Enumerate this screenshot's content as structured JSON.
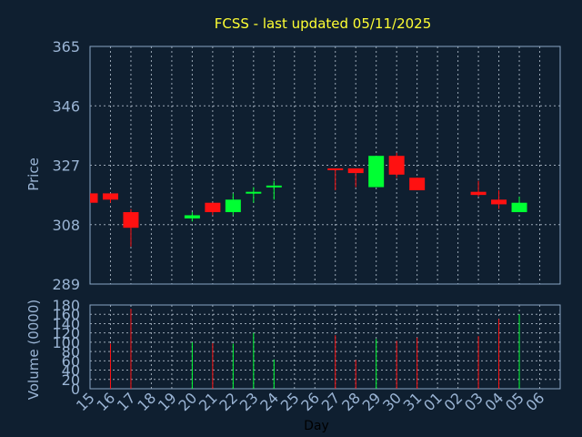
{
  "chart_data": {
    "type": "candlestick",
    "title": "FCSS - last updated 05/11/2025",
    "xlabel": "Day",
    "price_panel": {
      "ylabel": "Price",
      "ylim": [
        289,
        365
      ],
      "yticks": [
        "365",
        "346",
        "327",
        "308",
        "289"
      ],
      "grid": true
    },
    "volume_panel": {
      "ylabel": "Volume (0000)",
      "ylim": [
        0,
        180
      ],
      "yticks": [
        "180",
        "160",
        "140",
        "120",
        "100",
        "80",
        "60",
        "40",
        "20",
        "0"
      ],
      "grid": true
    },
    "categories": [
      "15",
      "16",
      "17",
      "18",
      "19",
      "20",
      "21",
      "22",
      "23",
      "24",
      "25",
      "26",
      "27",
      "28",
      "29",
      "30",
      "31",
      "01",
      "02",
      "03",
      "04",
      "05",
      "06"
    ],
    "ohlc": [
      {
        "day": "15",
        "open": 318,
        "high": 318,
        "low": 315,
        "close": 315
      },
      {
        "day": "16",
        "open": 318,
        "high": 318,
        "low": 315,
        "close": 316
      },
      {
        "day": "17",
        "open": 312,
        "high": 313,
        "low": 301,
        "close": 307
      },
      {
        "day": "20",
        "open": 310,
        "high": 312,
        "low": 309,
        "close": 311
      },
      {
        "day": "21",
        "open": 315,
        "high": 315,
        "low": 311,
        "close": 312
      },
      {
        "day": "22",
        "open": 312,
        "high": 318,
        "low": 311,
        "close": 316
      },
      {
        "day": "23",
        "open": 318,
        "high": 320,
        "low": 315,
        "close": 318.5
      },
      {
        "day": "24",
        "open": 320,
        "high": 322,
        "low": 316,
        "close": 320.5
      },
      {
        "day": "27",
        "open": 326,
        "high": 326,
        "low": 319,
        "close": 325.5
      },
      {
        "day": "28",
        "open": 326,
        "high": 326,
        "low": 320,
        "close": 324.5
      },
      {
        "day": "29",
        "open": 320,
        "high": 330,
        "low": 320,
        "close": 330
      },
      {
        "day": "30",
        "open": 330,
        "high": 331,
        "low": 323,
        "close": 324
      },
      {
        "day": "31",
        "open": 323,
        "high": 323,
        "low": 319,
        "close": 319
      },
      {
        "day": "03",
        "open": 318.5,
        "high": 322,
        "low": 317,
        "close": 317.5
      },
      {
        "day": "04",
        "open": 316,
        "high": 319,
        "low": 313,
        "close": 314.5
      },
      {
        "day": "05",
        "open": 312,
        "high": 317,
        "low": 312,
        "close": 315
      }
    ],
    "volume": [
      {
        "day": "16",
        "value": 97,
        "direction": "down"
      },
      {
        "day": "17",
        "value": 172,
        "direction": "down"
      },
      {
        "day": "20",
        "value": 100,
        "direction": "up"
      },
      {
        "day": "21",
        "value": 98,
        "direction": "down"
      },
      {
        "day": "22",
        "value": 97,
        "direction": "up"
      },
      {
        "day": "23",
        "value": 120,
        "direction": "up"
      },
      {
        "day": "24",
        "value": 63,
        "direction": "up"
      },
      {
        "day": "27",
        "value": 115,
        "direction": "down"
      },
      {
        "day": "28",
        "value": 62,
        "direction": "down"
      },
      {
        "day": "29",
        "value": 107,
        "direction": "up"
      },
      {
        "day": "30",
        "value": 103,
        "direction": "down"
      },
      {
        "day": "31",
        "value": 110,
        "direction": "down"
      },
      {
        "day": "03",
        "value": 113,
        "direction": "down"
      },
      {
        "day": "04",
        "value": 150,
        "direction": "down"
      },
      {
        "day": "05",
        "value": 160,
        "direction": "up"
      }
    ],
    "colors": {
      "up": "#00ff33",
      "down": "#ff1111",
      "background": "#0f1f30",
      "axis": "#8aa6c4",
      "text": "#9ab4d4",
      "title": "#ffff33",
      "grid": "#c8d4e0"
    }
  }
}
